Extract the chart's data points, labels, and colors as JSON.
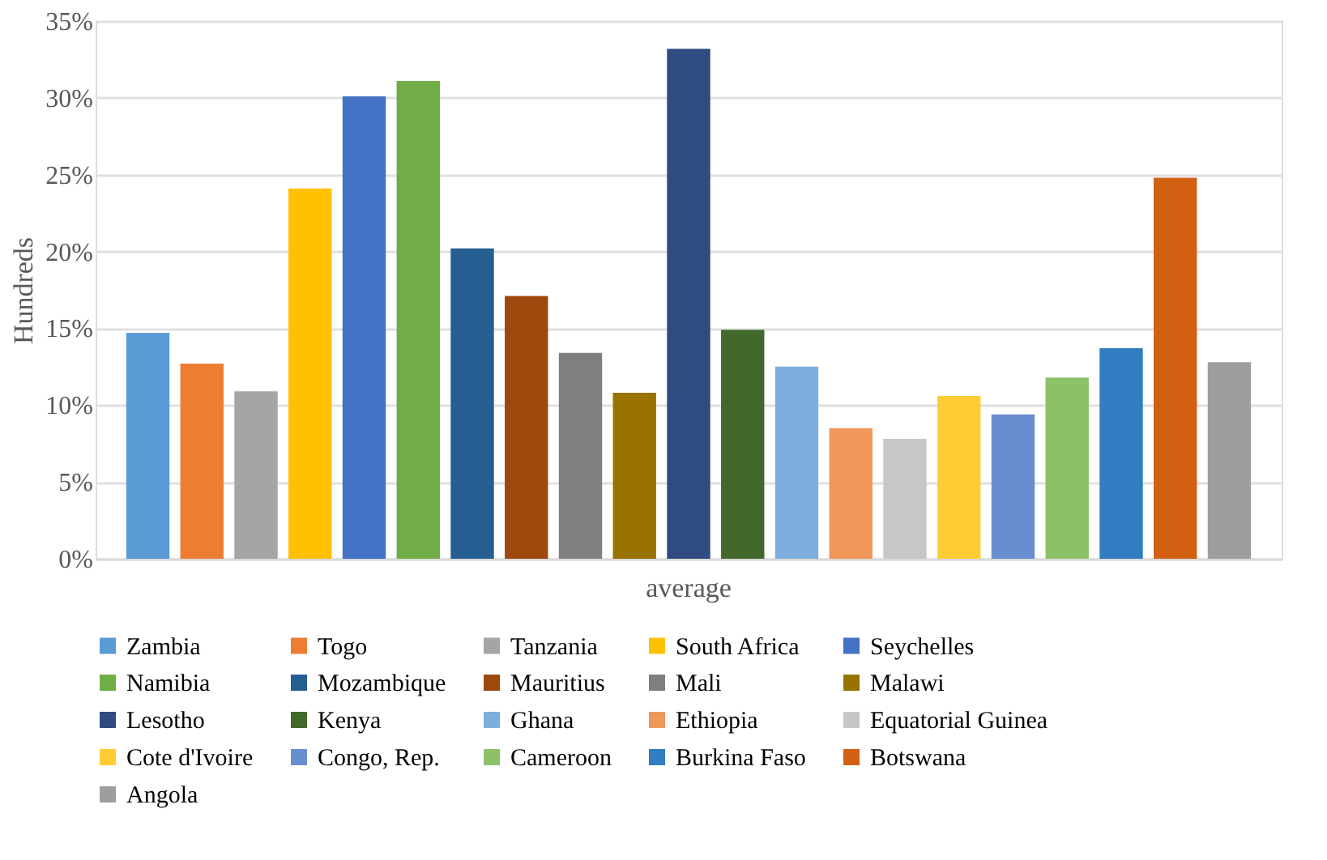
{
  "chart_data": {
    "type": "bar",
    "ylabel": "Hundreds",
    "categories": [
      "average"
    ],
    "series": [
      {
        "name": "Zambia",
        "color": "#5b9bd5",
        "values": [
          14.7
        ]
      },
      {
        "name": "Togo",
        "color": "#ed7d31",
        "values": [
          12.7
        ]
      },
      {
        "name": "Tanzania",
        "color": "#a5a5a5",
        "values": [
          10.9
        ]
      },
      {
        "name": "South Africa",
        "color": "#ffc000",
        "values": [
          24.1
        ]
      },
      {
        "name": "Seychelles",
        "color": "#4472c4",
        "values": [
          30.1
        ]
      },
      {
        "name": "Namibia",
        "color": "#70ad47",
        "values": [
          31.1
        ]
      },
      {
        "name": "Mozambique",
        "color": "#255e91",
        "values": [
          20.2
        ]
      },
      {
        "name": "Mauritius",
        "color": "#9e480e",
        "values": [
          17.1
        ]
      },
      {
        "name": "Mali",
        "color": "#7f7f7f",
        "values": [
          13.4
        ]
      },
      {
        "name": "Malawi",
        "color": "#997300",
        "values": [
          10.8
        ]
      },
      {
        "name": "Lesotho",
        "color": "#2f4b80",
        "values": [
          33.2
        ]
      },
      {
        "name": "Kenya",
        "color": "#43682b",
        "values": [
          14.9
        ]
      },
      {
        "name": "Ghana",
        "color": "#7cafdd",
        "values": [
          12.5
        ]
      },
      {
        "name": "Ethiopia",
        "color": "#f1975a",
        "values": [
          8.5
        ]
      },
      {
        "name": "Equatorial Guinea",
        "color": "#c7c7c7",
        "values": [
          7.8
        ]
      },
      {
        "name": "Cote d'Ivoire",
        "color": "#ffcd33",
        "values": [
          10.6
        ]
      },
      {
        "name": "Congo, Rep.",
        "color": "#698ed0",
        "values": [
          9.4
        ]
      },
      {
        "name": "Cameroon",
        "color": "#8cc168",
        "values": [
          11.8
        ]
      },
      {
        "name": "Burkina Faso",
        "color": "#327dc2",
        "values": [
          13.7
        ]
      },
      {
        "name": "Botswana",
        "color": "#d26012",
        "values": [
          24.8
        ]
      },
      {
        "name": "Angola",
        "color": "#9e9e9e",
        "values": [
          12.8
        ]
      }
    ],
    "ylim": [
      0,
      35
    ],
    "yticks": [
      {
        "value": 0,
        "label": "0%"
      },
      {
        "value": 5,
        "label": "5%"
      },
      {
        "value": 10,
        "label": "10%"
      },
      {
        "value": 15,
        "label": "15%"
      },
      {
        "value": 20,
        "label": "20%"
      },
      {
        "value": 25,
        "label": "25%"
      },
      {
        "value": 30,
        "label": "30%"
      },
      {
        "value": 35,
        "label": "35%"
      }
    ],
    "grid": "y",
    "legend": "bottom"
  }
}
